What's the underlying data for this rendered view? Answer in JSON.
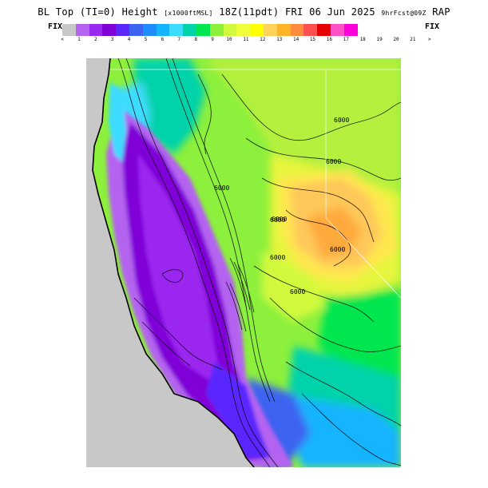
{
  "title": {
    "main": "BL Top (TI=0) Height",
    "units": "[x1000ftMSL]",
    "valid": "18Z(11pdt) FRI 06 Jun 2025",
    "forecast": "9hrFcst@09Z",
    "model": "RAP"
  },
  "colorbar": {
    "left_label": "FIX",
    "right_label": "FIX",
    "colors": [
      "#c8c8c8",
      "#b464f0",
      "#9b28f0",
      "#8000d8",
      "#5a28ff",
      "#3c64f0",
      "#1e8cff",
      "#14b4ff",
      "#3cdcff",
      "#00d2aa",
      "#00e650",
      "#8cf03c",
      "#d2fa3c",
      "#f0ff3c",
      "#ffff00",
      "#ffd25a",
      "#ffb428",
      "#ff8c3c",
      "#ff5050",
      "#e60000",
      "#ff50c8",
      "#ff00dc"
    ],
    "ticks": [
      "<",
      "1",
      "2",
      "3",
      "4",
      "5",
      "6",
      "7",
      "8",
      "9",
      "10",
      "11",
      "12",
      "13",
      "14",
      "15",
      "16",
      "17",
      "18",
      "19",
      "20",
      "21",
      ">"
    ]
  },
  "map": {
    "contour_labels": [
      "6000",
      "6000",
      "6000",
      "6000",
      "6000",
      "6000",
      "6000",
      "6000"
    ],
    "ocean_color": "#c8c8c8"
  }
}
